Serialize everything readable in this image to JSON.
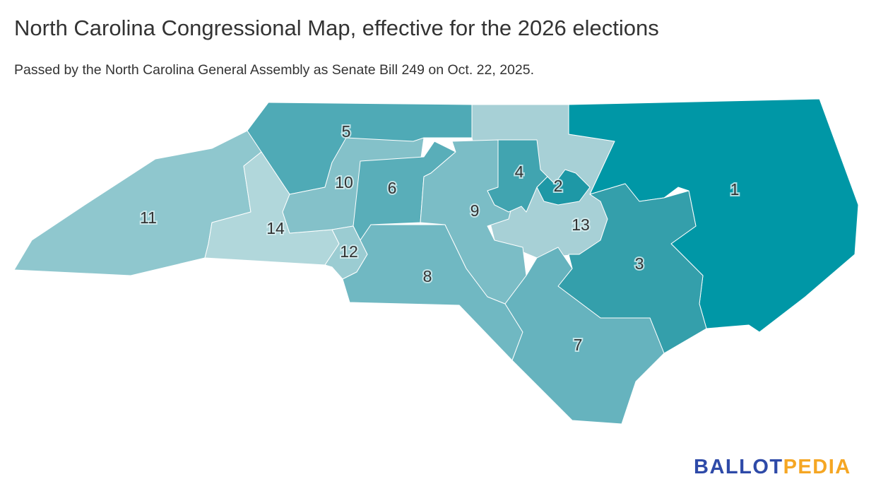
{
  "title": "North Carolina Congressional Map, effective for the 2026 elections",
  "subtitle": "Passed by the North Carolina General Assembly as Senate Bill 249 on Oct. 22, 2025.",
  "logo": {
    "part1": "BALLOT",
    "part2": "PEDIA"
  },
  "districts": [
    {
      "id": "13",
      "label": "13",
      "color": "#a7d0d6"
    },
    {
      "id": "11",
      "label": "11",
      "color": "#8fc7ce"
    },
    {
      "id": "5",
      "label": "5",
      "color": "#4faab6"
    },
    {
      "id": "14",
      "label": "14",
      "color": "#b1d7db"
    },
    {
      "id": "10",
      "label": "10",
      "color": "#84c1c9"
    },
    {
      "id": "6",
      "label": "6",
      "color": "#59aeb9"
    },
    {
      "id": "12",
      "label": "12",
      "color": "#9bccd2"
    },
    {
      "id": "8",
      "label": "8",
      "color": "#70b8c2"
    },
    {
      "id": "9",
      "label": "9",
      "color": "#7bbdc6"
    },
    {
      "id": "4",
      "label": "4",
      "color": "#41a4b0"
    },
    {
      "id": "2",
      "label": "2",
      "color": "#1e98a6"
    },
    {
      "id": "1",
      "label": "1",
      "color": "#0097a6"
    },
    {
      "id": "3",
      "label": "3",
      "color": "#349fab"
    },
    {
      "id": "7",
      "label": "7",
      "color": "#66b3be"
    }
  ]
}
